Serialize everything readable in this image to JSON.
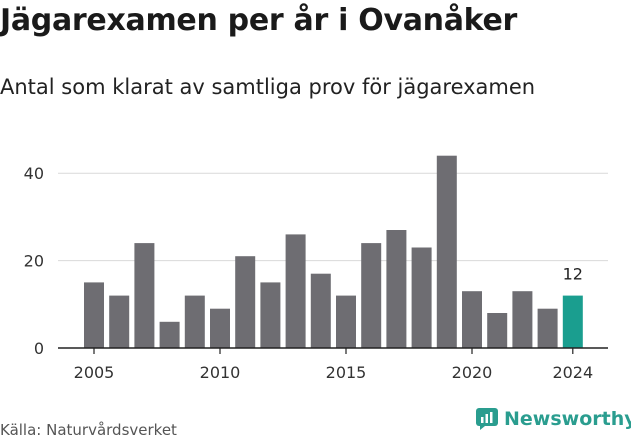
{
  "header": {
    "title": "Jägarexamen per år i Ovanåker",
    "subtitle": "Antal som klarat av samtliga prov för jägarexamen"
  },
  "footer": {
    "source": "Källa: Naturvårdsverket",
    "brand": "Newsworthy"
  },
  "colors": {
    "bar": "#6e6d72",
    "highlight": "#1a9e8f",
    "grid": "#d9d9d9",
    "axis": "#222222",
    "brand": "#2a9d8f"
  },
  "chart_data": {
    "type": "bar",
    "x": [
      2005,
      2006,
      2007,
      2008,
      2009,
      2010,
      2011,
      2012,
      2013,
      2014,
      2015,
      2016,
      2017,
      2018,
      2019,
      2020,
      2021,
      2022,
      2023,
      2024
    ],
    "values": [
      15,
      12,
      24,
      6,
      12,
      9,
      21,
      15,
      26,
      17,
      12,
      24,
      27,
      23,
      44,
      13,
      8,
      13,
      9,
      12
    ],
    "highlight_index": 19,
    "highlight_label": "12",
    "ylim": [
      0,
      45
    ],
    "yticks": [
      0,
      20,
      40
    ],
    "xticks": [
      2005,
      2010,
      2015,
      2020,
      2024
    ],
    "grid": true,
    "title": "Jägarexamen per år i Ovanåker",
    "xlabel": "",
    "ylabel": ""
  }
}
